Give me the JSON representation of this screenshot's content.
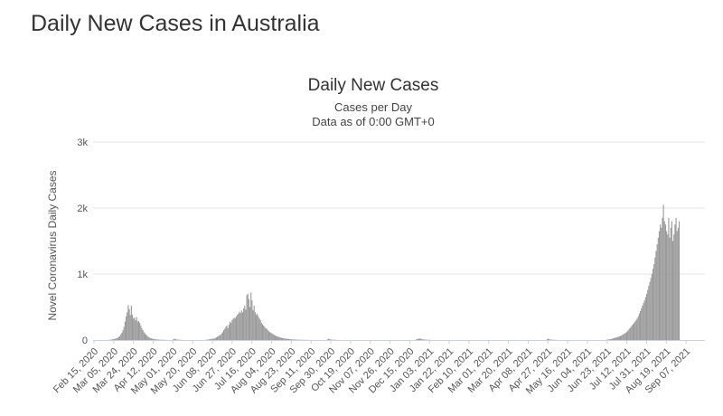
{
  "page": {
    "heading": "Daily New Cases in Australia"
  },
  "chart_data": {
    "type": "bar",
    "title": "Daily New Cases",
    "subtitle_lines": [
      "Cases per Day",
      "Data as of 0:00 GMT+0"
    ],
    "xlabel": "",
    "ylabel": "Novel Coronavirus Daily Cases",
    "ylim": [
      0,
      3000
    ],
    "y_ticks": [
      {
        "value": 0,
        "label": "0"
      },
      {
        "value": 1000,
        "label": "1k"
      },
      {
        "value": 2000,
        "label": "2k"
      },
      {
        "value": 3000,
        "label": "3k"
      }
    ],
    "x_range": [
      "2020-02-15",
      "2021-09-20"
    ],
    "x_tick_labels": [
      "Feb 15, 2020",
      "Mar 05, 2020",
      "Mar 24, 2020",
      "Apr 12, 2020",
      "May 01, 2020",
      "May 20, 2020",
      "Jun 08, 2020",
      "Jun 27, 2020",
      "Jul 16, 2020",
      "Aug 04, 2020",
      "Aug 23, 2020",
      "Sep 11, 2020",
      "Sep 30, 2020",
      "Oct 19, 2020",
      "Nov 07, 2020",
      "Nov 26, 2020",
      "Dec 15, 2020",
      "Jan 03, 2021",
      "Jan 22, 2021",
      "Feb 10, 2021",
      "Mar 01, 2021",
      "Mar 20, 2021",
      "Apr 08, 2021",
      "Apr 27, 2021",
      "May 16, 2021",
      "Jun 04, 2021",
      "Jun 23, 2021",
      "Jul 12, 2021",
      "Jul 31, 2021",
      "Aug 19, 2021",
      "Sep 07, 2021"
    ],
    "grid": true,
    "legend": "none",
    "bar_color": "#999999",
    "series": [
      {
        "values": [
          {
            "start": "2020-02-15",
            "values": [
              0,
              0,
              0,
              0,
              0,
              0,
              0,
              0,
              0,
              0,
              0,
              0,
              0,
              0,
              2,
              3,
              5,
              7,
              10,
              14,
              18,
              22,
              28,
              35,
              45,
              60,
              85,
              110,
              150,
              200,
              280,
              360,
              420,
              530,
              470,
              380,
              520,
              380,
              330,
              340,
              300,
              350,
              280,
              290,
              260,
              220,
              180,
              150,
              120,
              100,
              80,
              65,
              50,
              40,
              30,
              25,
              20,
              18,
              15,
              12,
              10,
              8,
              6,
              5,
              4,
              3,
              3,
              2,
              2,
              2,
              1
            ]
          },
          {
            "start": "2020-05-01",
            "values": [
              10,
              20,
              15,
              8,
              5,
              5,
              3,
              3,
              2,
              2
            ]
          },
          {
            "start": "2020-06-01",
            "values": [
              3,
              5,
              8,
              10,
              12,
              15,
              20,
              18,
              25,
              30,
              40,
              50,
              60,
              70,
              80,
              100,
              120,
              150,
              170,
              200,
              220,
              180,
              230,
              280,
              260,
              300,
              320,
              340,
              330,
              360,
              380,
              400,
              430,
              410,
              450,
              420,
              480,
              520,
              460,
              680,
              700,
              620,
              500,
              720,
              600,
              450,
              520,
              420,
              380,
              400,
              360,
              330,
              300,
              260,
              240,
              220,
              200,
              180,
              170,
              150,
              130,
              120,
              110,
              100,
              90,
              80,
              70,
              60,
              55,
              50,
              45,
              40,
              35,
              30,
              28,
              25,
              22,
              20,
              18,
              16,
              14,
              12,
              10,
              9,
              8,
              7,
              6,
              5,
              5,
              4,
              4,
              3,
              3,
              3,
              2,
              2,
              2,
              2,
              1,
              1,
              1,
              1
            ]
          },
          {
            "start": "2020-09-25",
            "values": [
              10,
              20,
              15,
              8,
              5,
              5,
              3,
              3,
              2,
              2
            ]
          },
          {
            "start": "2020-12-18",
            "values": [
              5,
              12,
              20,
              15,
              25,
              18,
              12,
              10,
              8,
              6,
              5,
              4,
              3,
              3,
              2,
              2
            ]
          },
          {
            "start": "2021-04-22",
            "values": [
              10,
              20,
              15,
              8,
              5,
              5,
              3,
              3,
              2,
              2
            ]
          },
          {
            "start": "2021-06-18",
            "values": [
              5,
              8,
              10,
              12,
              15,
              20,
              25,
              30,
              35,
              40,
              45,
              50,
              55,
              60,
              70,
              80,
              90,
              100,
              110,
              120,
              140,
              160,
              180,
              200,
              220,
              240,
              260,
              280,
              300,
              330,
              360,
              400,
              440,
              480,
              520,
              560,
              600,
              650,
              700,
              760,
              820,
              880,
              940,
              1000,
              1080,
              1150,
              1250,
              1350,
              1450,
              1550,
              1650,
              1750,
              1700,
              1850,
              2050,
              1800,
              1750,
              1650,
              1600,
              1850,
              1550,
              1700,
              1800,
              1500,
              1600,
              1750,
              1850,
              1650,
              1700,
              1800
            ]
          }
        ]
      }
    ]
  }
}
